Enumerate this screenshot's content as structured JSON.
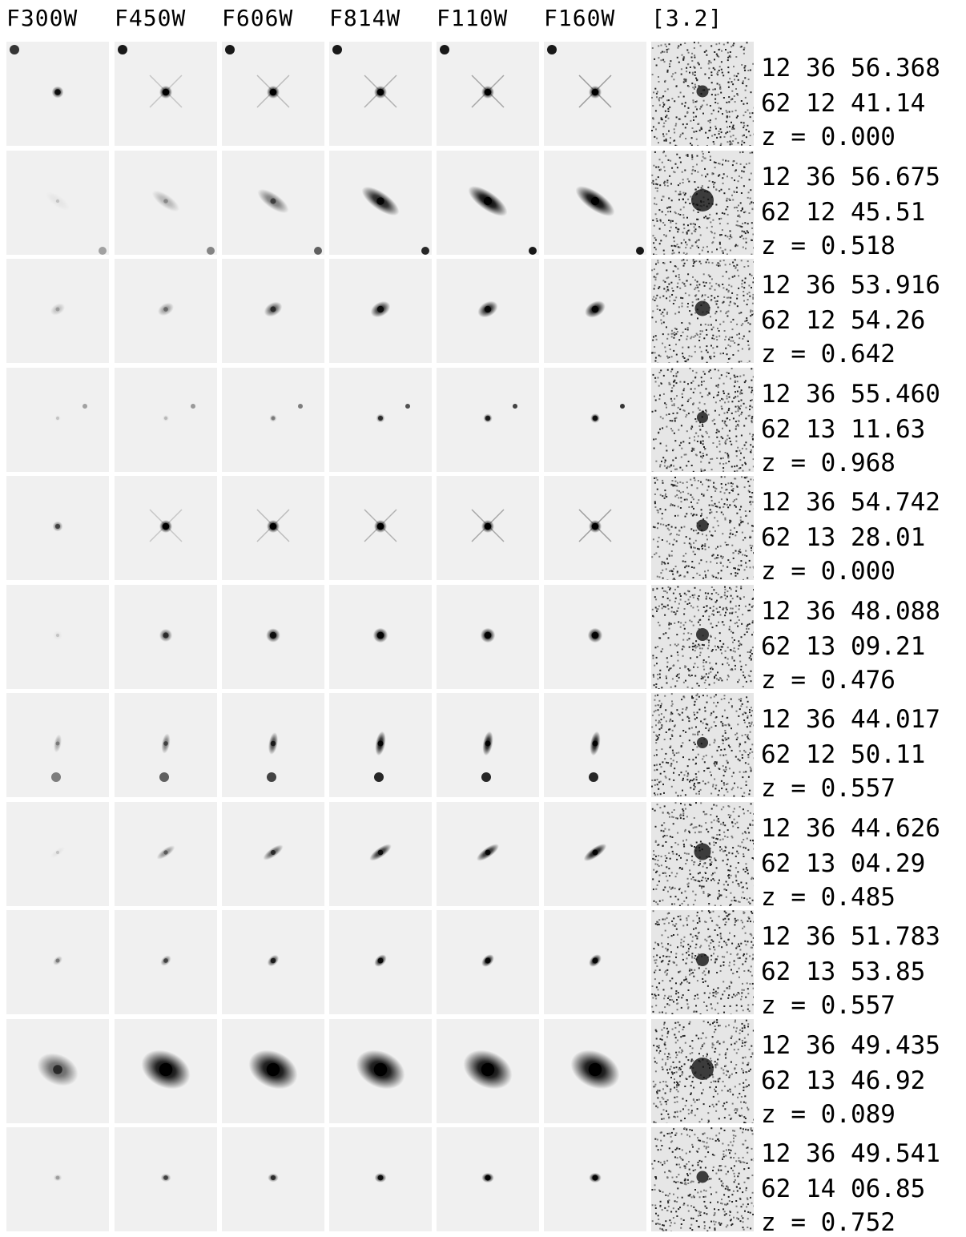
{
  "header": {
    "bands": [
      "F300W",
      "F450W",
      "F606W",
      "F814W",
      "F110W",
      "F160W",
      "[3.2]"
    ]
  },
  "colors": {
    "cell_background": "#f0f0f0",
    "object": "#000000",
    "text": "#000000"
  },
  "rows": [
    {
      "ra": "12 36 56.368",
      "dec": "62 12 41.14",
      "redshift": "z = 0.000"
    },
    {
      "ra": "12 36 56.675",
      "dec": "62 12 45.51",
      "redshift": "z = 0.518"
    },
    {
      "ra": "12 36 53.916",
      "dec": "62 12 54.26",
      "redshift": "z = 0.642"
    },
    {
      "ra": "12 36 55.460",
      "dec": "62 13 11.63",
      "redshift": "z = 0.968"
    },
    {
      "ra": "12 36 54.742",
      "dec": "62 13 28.01",
      "redshift": "z = 0.000"
    },
    {
      "ra": "12 36 48.088",
      "dec": "62 13 09.21",
      "redshift": "z = 0.476"
    },
    {
      "ra": "12 36 44.017",
      "dec": "62 12 50.11",
      "redshift": "z = 0.557"
    },
    {
      "ra": "12 36 44.626",
      "dec": "62 13 04.29",
      "redshift": "z = 0.485"
    },
    {
      "ra": "12 36 51.783",
      "dec": "62 13 53.85",
      "redshift": "z = 0.557"
    },
    {
      "ra": "12 36 49.435",
      "dec": "62 13 46.92",
      "redshift": "z = 0.089"
    },
    {
      "ra": "12 36 49.541",
      "dec": "62 14 06.85",
      "redshift": "z = 0.752"
    }
  ]
}
